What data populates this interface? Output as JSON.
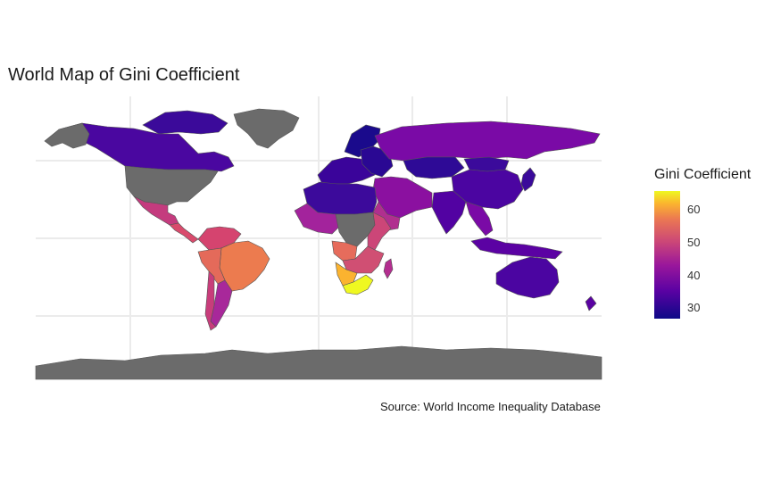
{
  "title": "World Map of Gini Coefficient",
  "caption": "Source: World Income Inequality Database",
  "legend": {
    "title": "Gini Coefficient",
    "ticks": [
      {
        "value": 60,
        "label": "60"
      },
      {
        "value": 50,
        "label": "50"
      },
      {
        "value": 40,
        "label": "40"
      },
      {
        "value": 30,
        "label": "30"
      }
    ],
    "range": [
      26,
      66
    ],
    "palette": "plasma"
  },
  "map": {
    "grid": true,
    "no_data_color": "#6b6b6b",
    "regions": [
      {
        "name": "Canada",
        "gini": 33
      },
      {
        "name": "United States",
        "gini": null
      },
      {
        "name": "Greenland",
        "gini": null
      },
      {
        "name": "Mexico",
        "gini": 45
      },
      {
        "name": "Central America",
        "gini": 48
      },
      {
        "name": "Colombia / Venezuela",
        "gini": 51
      },
      {
        "name": "Brazil",
        "gini": 53
      },
      {
        "name": "Peru / Bolivia",
        "gini": 43
      },
      {
        "name": "Argentina",
        "gini": 42
      },
      {
        "name": "Chile",
        "gini": 45
      },
      {
        "name": "Western Europe",
        "gini": 31
      },
      {
        "name": "Scandinavia",
        "gini": 27
      },
      {
        "name": "Russia",
        "gini": 37
      },
      {
        "name": "Kazakhstan",
        "gini": 28
      },
      {
        "name": "China",
        "gini": 38
      },
      {
        "name": "India",
        "gini": 35
      },
      {
        "name": "Middle East",
        "gini": 40
      },
      {
        "name": "North Africa",
        "gini": 32
      },
      {
        "name": "West Africa",
        "gini": 42
      },
      {
        "name": "Central Africa",
        "gini": null
      },
      {
        "name": "East Africa",
        "gini": 39
      },
      {
        "name": "Southern Africa",
        "gini": 57
      },
      {
        "name": "South Africa",
        "gini": 63
      },
      {
        "name": "Southeast Asia",
        "gini": 38
      },
      {
        "name": "Indonesia",
        "gini": 37
      },
      {
        "name": "Australia",
        "gini": 33
      },
      {
        "name": "Antarctica",
        "gini": null
      }
    ]
  }
}
